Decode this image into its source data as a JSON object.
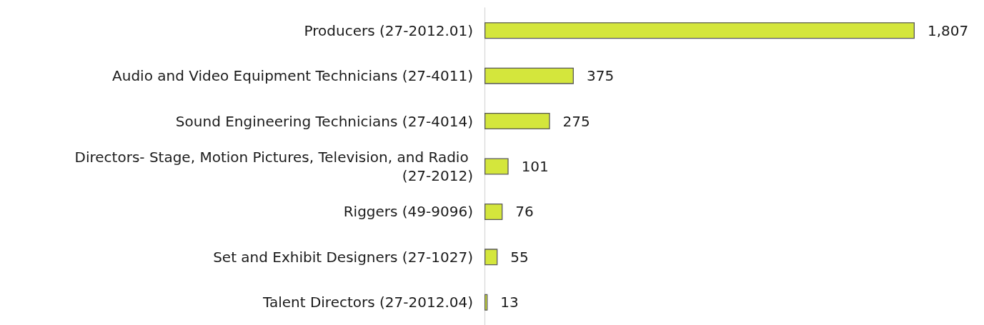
{
  "chart_data": {
    "type": "bar",
    "orientation": "horizontal",
    "categories": [
      "Producers (27-2012.01)",
      "Audio and Video Equipment Technicians (27-4011)",
      "Sound Engineering Technicians (27-4014)",
      "Directors- Stage, Motion Pictures, Television, and Radio (27-2012)",
      "Riggers (49-9096)",
      "Set and Exhibit Designers (27-1027)",
      "Talent Directors (27-2012.04)"
    ],
    "values": [
      1807,
      375,
      275,
      101,
      76,
      55,
      13
    ],
    "value_labels": [
      "1,807",
      "375",
      "275",
      "101",
      "76",
      "55",
      "13"
    ],
    "color": "#d4e63c",
    "tick_labels": "y"
  }
}
